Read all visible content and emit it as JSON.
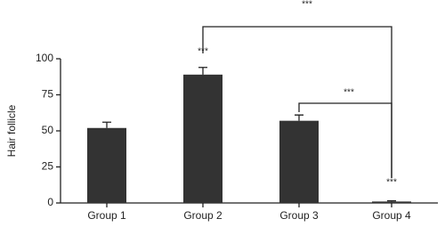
{
  "chart_data": {
    "type": "bar",
    "y_label": "Hair follicle",
    "categories": [
      "Group 1",
      "Group 2",
      "Group 3",
      "Group 4"
    ],
    "values": [
      52,
      89,
      57,
      1
    ],
    "errors": [
      4,
      5,
      4,
      0.5
    ],
    "color": "#333333",
    "ylim": [
      0,
      100
    ],
    "yticks": [
      0,
      25,
      50,
      75,
      100
    ],
    "annotations": [
      "***",
      "***",
      "***",
      "***"
    ]
  }
}
